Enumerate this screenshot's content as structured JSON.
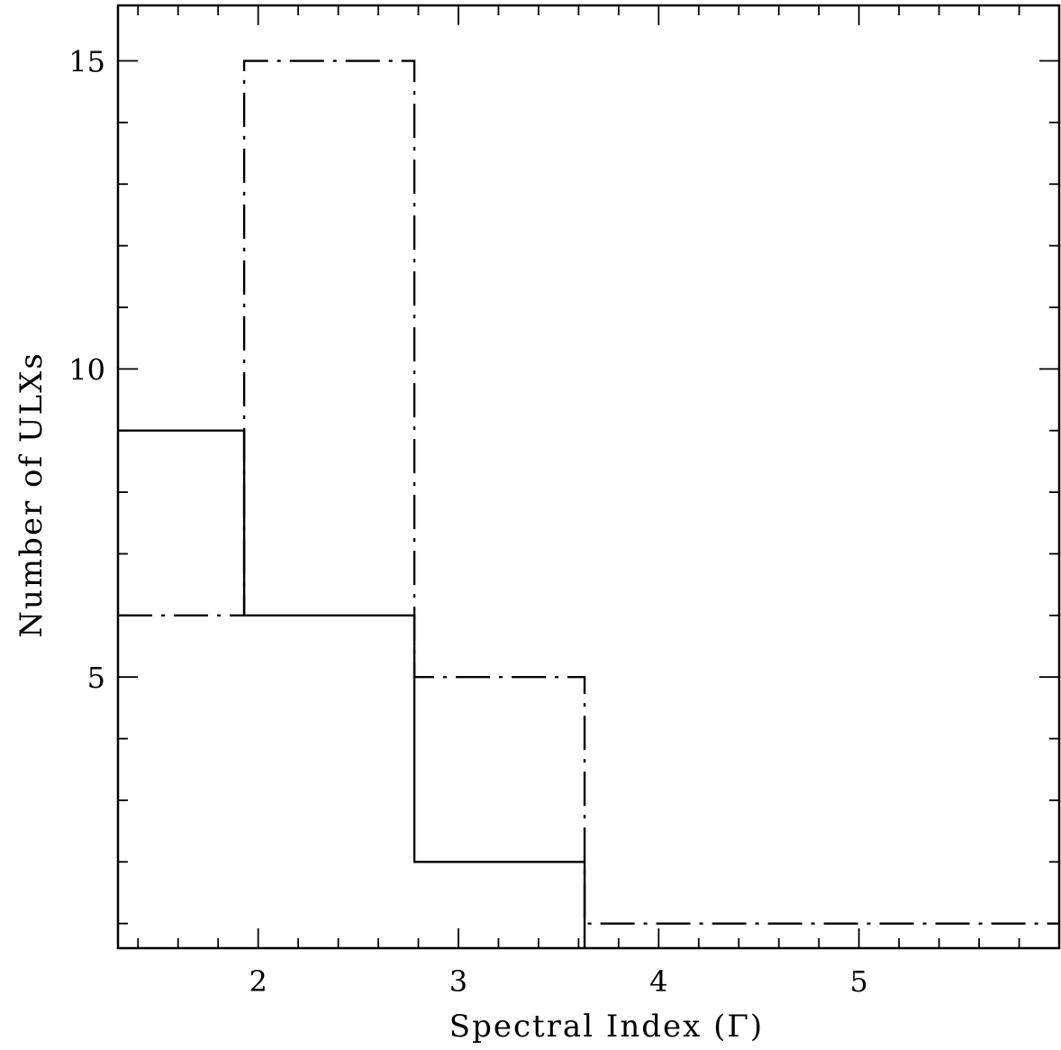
{
  "chart_data": {
    "type": "histogram",
    "xlabel": "Spectral Index (Γ)",
    "ylabel": "Number of ULXs",
    "xlim": [
      1.3,
      6.0
    ],
    "ylim": [
      0.6,
      15.9
    ],
    "x_major_ticks": [
      2,
      3,
      4,
      5
    ],
    "x_minor_step": 0.2,
    "y_major_ticks": [
      5,
      10,
      15
    ],
    "y_minor_step": 1,
    "grid": false,
    "bin_edges": [
      1.3,
      1.93,
      2.78,
      3.63,
      6.0
    ],
    "series": [
      {
        "style": "solid",
        "counts": [
          9,
          6,
          2,
          0
        ]
      },
      {
        "style": "dashed",
        "counts": [
          6,
          15,
          5,
          1
        ]
      }
    ]
  }
}
